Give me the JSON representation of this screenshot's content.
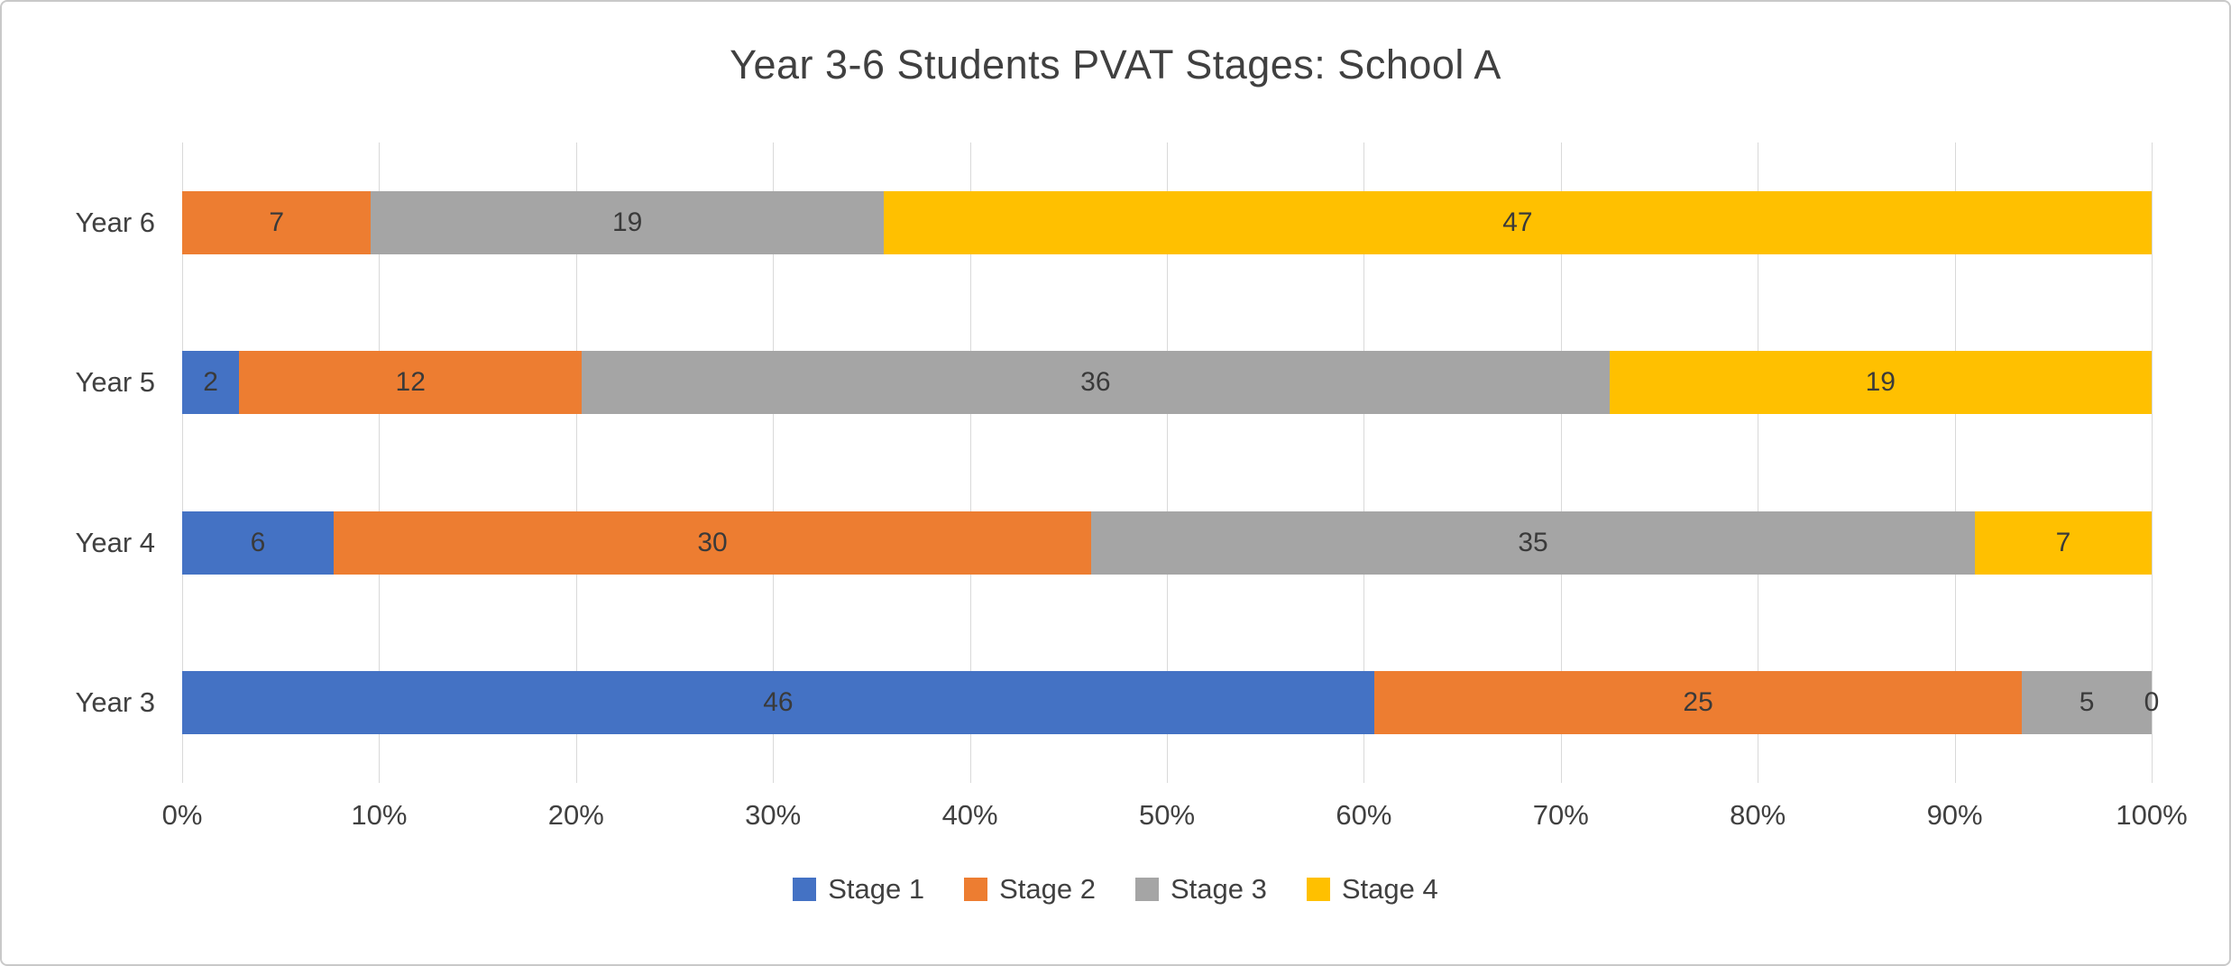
{
  "chart_data": {
    "type": "bar",
    "orientation": "horizontal",
    "stacked": true,
    "percent_stacked": true,
    "title": "Year 3-6 Students PVAT Stages: School A",
    "categories": [
      "Year 6",
      "Year 5",
      "Year 4",
      "Year 3"
    ],
    "series": [
      {
        "name": "Stage 1",
        "color": "#4472C4",
        "values": [
          0,
          2,
          6,
          46
        ]
      },
      {
        "name": "Stage 2",
        "color": "#ED7D31",
        "values": [
          7,
          12,
          30,
          25
        ]
      },
      {
        "name": "Stage 3",
        "color": "#A5A5A5",
        "values": [
          19,
          36,
          35,
          5
        ]
      },
      {
        "name": "Stage 4",
        "color": "#FFC000",
        "values": [
          47,
          19,
          7,
          0
        ]
      }
    ],
    "x_axis": {
      "min": 0,
      "max": 100,
      "ticks": [
        "0%",
        "10%",
        "20%",
        "30%",
        "40%",
        "50%",
        "60%",
        "70%",
        "80%",
        "90%",
        "100%"
      ]
    },
    "legend": {
      "position": "bottom",
      "entries": [
        "Stage 1",
        "Stage 2",
        "Stage 3",
        "Stage 4"
      ]
    },
    "grid": true,
    "colors": {
      "gridline": "#d9d9d9",
      "text": "#404040",
      "background": "#ffffff"
    }
  }
}
